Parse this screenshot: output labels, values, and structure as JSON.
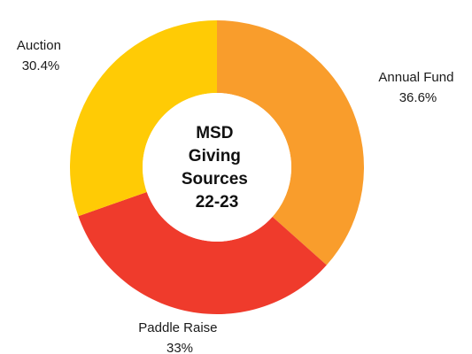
{
  "chart_data": {
    "type": "pie",
    "style": "donut",
    "center_title": [
      "MSD",
      "Giving",
      "Sources",
      "22-23"
    ],
    "slices": [
      {
        "label": "Annual Fund",
        "percent_label": "36.6%",
        "value": 36.6,
        "color": "#F99D2C"
      },
      {
        "label": "Paddle Raise",
        "percent_label": "33%",
        "value": 33.0,
        "color": "#EF3B2C"
      },
      {
        "label": "Auction",
        "percent_label": "30.4%",
        "value": 30.4,
        "color": "#FFCB05"
      }
    ],
    "legend": "none"
  }
}
